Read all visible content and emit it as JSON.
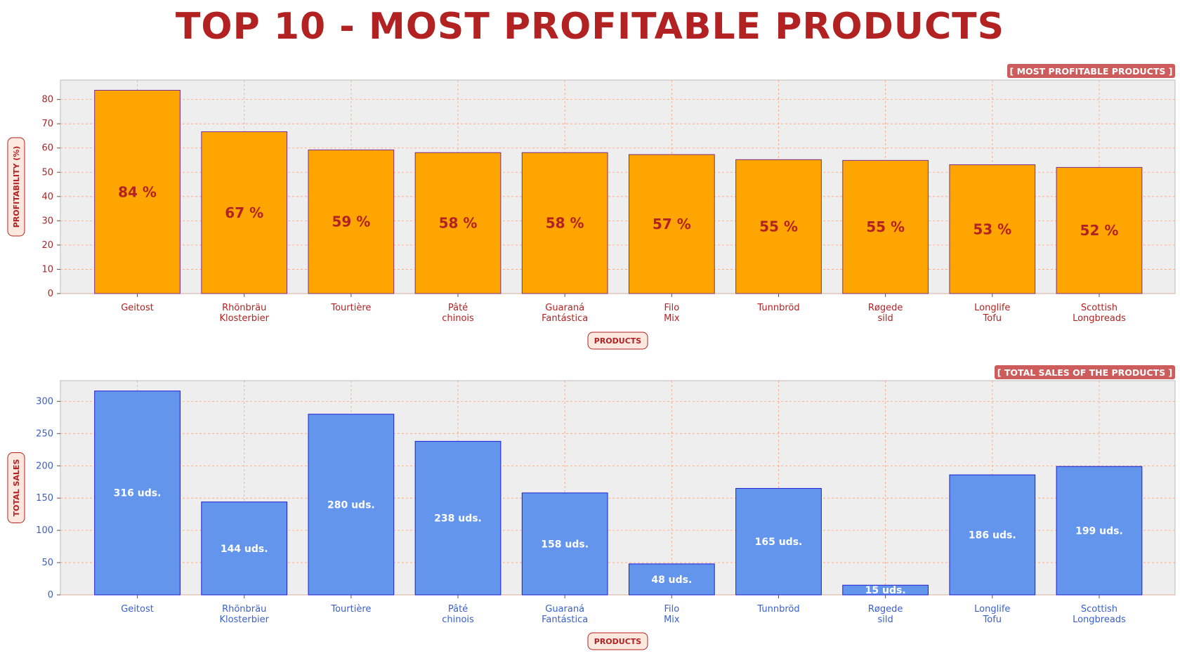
{
  "page_title": "TOP 10 - MOST PROFITABLE PRODUCTS",
  "colors": {
    "title": "#b22222",
    "bar_profit": "#ffa500",
    "bar_profit_edge": "#7b2d8b",
    "bar_sales": "#6495ed",
    "bar_sales_edge": "#1c1cd6",
    "tick_profit": "#b22222",
    "tick_sales": "#3a5fcd",
    "panel_bg": "#eeeeee",
    "grid": "#f4a582",
    "badge_bg": "#cd5c5c",
    "label_box_bg": "#fde8e0"
  },
  "chart_data": [
    {
      "type": "bar",
      "badge": "[ MOST PROFITABLE PRODUCTS ]",
      "xlabel": "PRODUCTS",
      "ylabel": "PROFITABILITY (%)",
      "ylim": [
        0,
        88
      ],
      "yticks": [
        0,
        10,
        20,
        30,
        40,
        50,
        60,
        70,
        80
      ],
      "grid": true,
      "categories": [
        [
          "Geitost"
        ],
        [
          "Rhönbräu",
          "Klosterbier"
        ],
        [
          "Tourtière"
        ],
        [
          "Pâté",
          "chinois"
        ],
        [
          "Guaraná",
          "Fantástica"
        ],
        [
          "Filo",
          "Mix"
        ],
        [
          "Tunnbröd"
        ],
        [
          "Røgede",
          "sild"
        ],
        [
          "Longlife",
          "Tofu"
        ],
        [
          "Scottish",
          "Longbreads"
        ]
      ],
      "values": [
        83.8,
        66.7,
        59.2,
        58.1,
        58.1,
        57.3,
        55.2,
        54.9,
        53.1,
        52.0
      ],
      "value_labels": [
        "84 %",
        "67 %",
        "59 %",
        "58 %",
        "58 %",
        "57 %",
        "55 %",
        "55 %",
        "53 %",
        "52 %"
      ]
    },
    {
      "type": "bar",
      "badge": "[ TOTAL SALES OF THE PRODUCTS ]",
      "xlabel": "PRODUCTS",
      "ylabel": "TOTAL SALES",
      "ylim": [
        0,
        332
      ],
      "yticks": [
        0,
        50,
        100,
        150,
        200,
        250,
        300
      ],
      "grid": true,
      "categories": [
        [
          "Geitost"
        ],
        [
          "Rhönbräu",
          "Klosterbier"
        ],
        [
          "Tourtière"
        ],
        [
          "Pâté",
          "chinois"
        ],
        [
          "Guaraná",
          "Fantástica"
        ],
        [
          "Filo",
          "Mix"
        ],
        [
          "Tunnbröd"
        ],
        [
          "Røgede",
          "sild"
        ],
        [
          "Longlife",
          "Tofu"
        ],
        [
          "Scottish",
          "Longbreads"
        ]
      ],
      "values": [
        316,
        144,
        280,
        238,
        158,
        48,
        165,
        15,
        186,
        199
      ],
      "value_labels": [
        "316 uds.",
        "144 uds.",
        "280 uds.",
        "238 uds.",
        "158 uds.",
        "48 uds.",
        "165 uds.",
        "15 uds.",
        "186 uds.",
        "199 uds."
      ]
    }
  ]
}
